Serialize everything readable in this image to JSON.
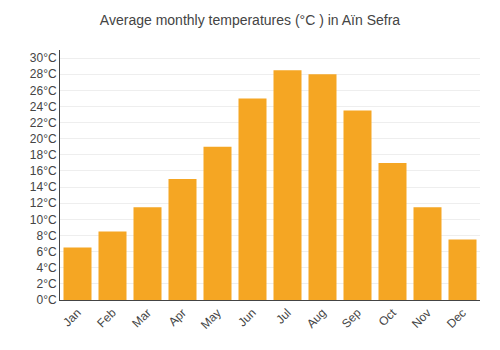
{
  "chart_data": {
    "type": "bar",
    "title": "Average monthly temperatures (°C ) in Aïn Sefra",
    "categories": [
      "Jan",
      "Feb",
      "Mar",
      "Apr",
      "May",
      "Jun",
      "Jul",
      "Aug",
      "Sep",
      "Oct",
      "Nov",
      "Dec"
    ],
    "values": [
      6.5,
      8.5,
      11.5,
      15.0,
      19.0,
      25.0,
      28.5,
      28.0,
      23.5,
      17.0,
      11.5,
      7.5
    ],
    "color": "#F5A623",
    "ylim": [
      0,
      31
    ],
    "yticks": [
      {
        "value": 0,
        "label": "0°C"
      },
      {
        "value": 2,
        "label": "2°C"
      },
      {
        "value": 4,
        "label": "4°C"
      },
      {
        "value": 6,
        "label": "6°C"
      },
      {
        "value": 8,
        "label": "8°C"
      },
      {
        "value": 10,
        "label": "10°C"
      },
      {
        "value": 12,
        "label": "12°C"
      },
      {
        "value": 14,
        "label": "14°C"
      },
      {
        "value": 16,
        "label": "16°C"
      },
      {
        "value": 18,
        "label": "18°C"
      },
      {
        "value": 20,
        "label": "20°C"
      },
      {
        "value": 22,
        "label": "22°C"
      },
      {
        "value": 24,
        "label": "24°C"
      },
      {
        "value": 26,
        "label": "26°C"
      },
      {
        "value": 28,
        "label": "28°C"
      },
      {
        "value": 30,
        "label": "30°C"
      }
    ],
    "grid": true
  }
}
